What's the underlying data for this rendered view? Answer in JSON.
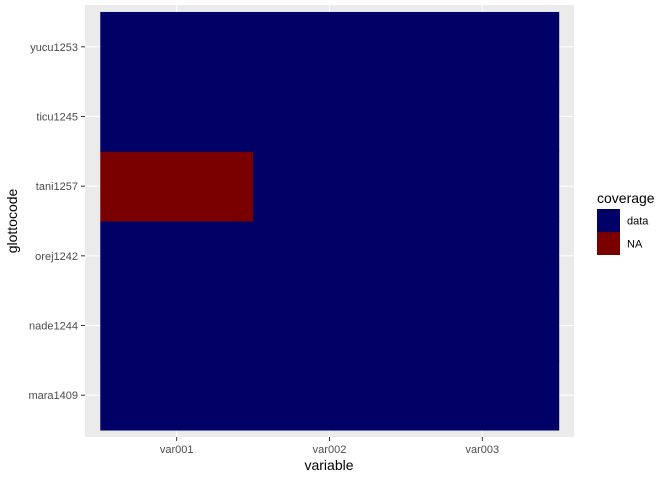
{
  "chart_data": {
    "type": "heatmap",
    "xlabel": "variable",
    "ylabel": "glottocode",
    "x_categories": [
      "var001",
      "var002",
      "var003"
    ],
    "y_categories": [
      "mara1409",
      "nade1244",
      "orej1242",
      "tani1257",
      "ticu1245",
      "yucu1253"
    ],
    "cells": [
      {
        "x": "var001",
        "y": "mara1409",
        "coverage": "data"
      },
      {
        "x": "var002",
        "y": "mara1409",
        "coverage": "data"
      },
      {
        "x": "var003",
        "y": "mara1409",
        "coverage": "data"
      },
      {
        "x": "var001",
        "y": "nade1244",
        "coverage": "data"
      },
      {
        "x": "var002",
        "y": "nade1244",
        "coverage": "data"
      },
      {
        "x": "var003",
        "y": "nade1244",
        "coverage": "data"
      },
      {
        "x": "var001",
        "y": "orej1242",
        "coverage": "data"
      },
      {
        "x": "var002",
        "y": "orej1242",
        "coverage": "data"
      },
      {
        "x": "var003",
        "y": "orej1242",
        "coverage": "data"
      },
      {
        "x": "var001",
        "y": "tani1257",
        "coverage": "NA"
      },
      {
        "x": "var002",
        "y": "tani1257",
        "coverage": "data"
      },
      {
        "x": "var003",
        "y": "tani1257",
        "coverage": "data"
      },
      {
        "x": "var001",
        "y": "ticu1245",
        "coverage": "data"
      },
      {
        "x": "var002",
        "y": "ticu1245",
        "coverage": "data"
      },
      {
        "x": "var003",
        "y": "ticu1245",
        "coverage": "data"
      },
      {
        "x": "var001",
        "y": "yucu1253",
        "coverage": "data"
      },
      {
        "x": "var002",
        "y": "yucu1253",
        "coverage": "data"
      },
      {
        "x": "var003",
        "y": "yucu1253",
        "coverage": "data"
      }
    ],
    "legend": {
      "title": "coverage",
      "position": "right",
      "entries": [
        {
          "label": "data",
          "color": "#000066"
        },
        {
          "label": "NA",
          "color": "#7a0000"
        }
      ]
    },
    "colors": {
      "panel_background": "#ebebeb",
      "grid": "#ffffff",
      "tick_mark": "#333333"
    },
    "grid": true
  }
}
